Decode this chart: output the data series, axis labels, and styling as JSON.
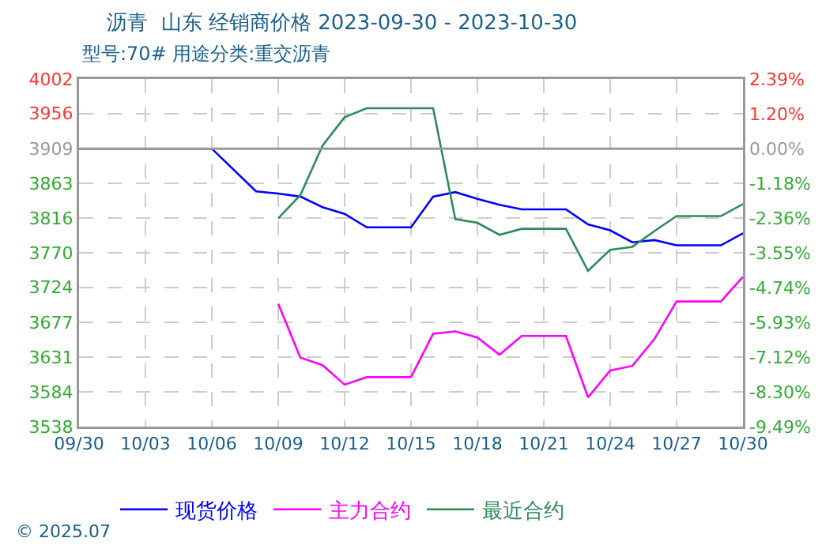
{
  "chart_data": {
    "type": "line",
    "title": "沥青  山东 经销商价格 2023-09-30 - 2023-10-30",
    "subtitle": "型号:70# 用途分类:重交沥青",
    "x": [
      "2023-09-30",
      "2023-10-06",
      "2023-10-08",
      "2023-10-09",
      "2023-10-10",
      "2023-10-11",
      "2023-10-12",
      "2023-10-13",
      "2023-10-14",
      "2023-10-15",
      "2023-10-16",
      "2023-10-17",
      "2023-10-18",
      "2023-10-19",
      "2023-10-20",
      "2023-10-21",
      "2023-10-22",
      "2023-10-23",
      "2023-10-24",
      "2023-10-25",
      "2023-10-26",
      "2023-10-27",
      "2023-10-28",
      "2023-10-29",
      "2023-10-30"
    ],
    "series": [
      {
        "name": "现货价格",
        "color": "#0000ff",
        "values": [
          3909,
          3909,
          3852,
          3849,
          3845,
          3831,
          3822,
          3804,
          3804,
          3804,
          3845,
          3851,
          3842,
          3834,
          3828,
          3828,
          3828,
          3808,
          3800,
          3784,
          3787,
          3780,
          3780,
          3780,
          3796
        ]
      },
      {
        "name": "主力合约",
        "color": "#ff00ff",
        "values": [
          null,
          null,
          null,
          3702,
          3630,
          3620,
          3594,
          3604,
          3604,
          3604,
          3662,
          3665,
          3657,
          3634,
          3659,
          3659,
          3659,
          3577,
          3613,
          3619,
          3655,
          3705,
          3705,
          3705,
          3738
        ]
      },
      {
        "name": "最近合约",
        "color": "#2e8b57",
        "values": [
          null,
          null,
          null,
          3816,
          3847,
          3913,
          3951,
          3963,
          3963,
          3963,
          3963,
          3815,
          3810,
          3794,
          3802,
          3802,
          3802,
          3746,
          3774,
          3778,
          3799,
          3819,
          3819,
          3819,
          3835
        ]
      }
    ],
    "xlim": [
      "2023-09-30",
      "2023-10-30"
    ],
    "xticks": [
      {
        "value": "2023-09-30",
        "label": "09/30"
      },
      {
        "value": "2023-10-03",
        "label": "10/03"
      },
      {
        "value": "2023-10-06",
        "label": "10/06"
      },
      {
        "value": "2023-10-09",
        "label": "10/09"
      },
      {
        "value": "2023-10-12",
        "label": "10/12"
      },
      {
        "value": "2023-10-15",
        "label": "10/15"
      },
      {
        "value": "2023-10-18",
        "label": "10/18"
      },
      {
        "value": "2023-10-21",
        "label": "10/21"
      },
      {
        "value": "2023-10-24",
        "label": "10/24"
      },
      {
        "value": "2023-10-27",
        "label": "10/27"
      },
      {
        "value": "2023-10-30",
        "label": "10/30"
      }
    ],
    "ylim": [
      3538,
      4002
    ],
    "yticks": [
      3538,
      3584,
      3631,
      3677,
      3724,
      3770,
      3816,
      3863,
      3909,
      3956,
      4002
    ],
    "y2lim": [
      -9.49,
      2.39
    ],
    "y2ticks": [
      {
        "value": -9.49,
        "label": "-9.49%"
      },
      {
        "value": -8.3,
        "label": "-8.30%"
      },
      {
        "value": -7.12,
        "label": "-7.12%"
      },
      {
        "value": -5.93,
        "label": "-5.93%"
      },
      {
        "value": -4.74,
        "label": "-4.74%"
      },
      {
        "value": -3.55,
        "label": "-3.55%"
      },
      {
        "value": -2.36,
        "label": "-2.36%"
      },
      {
        "value": -1.18,
        "label": "-1.18%"
      },
      {
        "value": 0,
        "label": "0.00%"
      },
      {
        "value": 1.2,
        "label": "1.20%"
      },
      {
        "value": 2.39,
        "label": "2.39%"
      }
    ],
    "ref_lines": [
      {
        "axis": "y",
        "value": 3909,
        "color": "#999999"
      }
    ],
    "grid": true,
    "legend": "bottom",
    "marker": "none",
    "line_style": "solid",
    "annotations": [
      "© 2025.07"
    ]
  }
}
